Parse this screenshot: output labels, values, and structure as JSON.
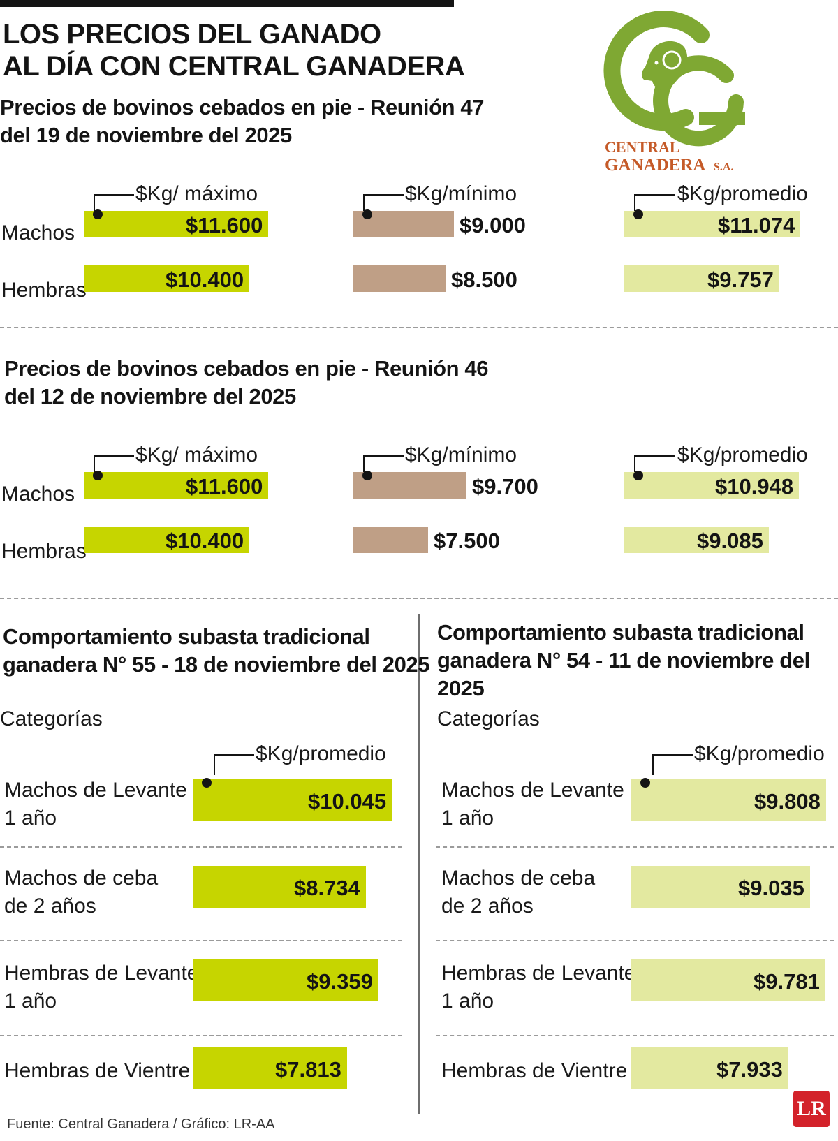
{
  "title": "LOS PRECIOS DEL GANADO AL DÍA CON CENTRAL GANADERA",
  "title_lines": [
    "LOS PRECIOS DEL GANADO",
    "AL DÍA CON CENTRAL GANADERA"
  ],
  "logo": {
    "line1": "CENTRAL",
    "line2": "GANADERA",
    "suffix": "S.A.",
    "icon": "ram-head-icon",
    "color": "#7fa833",
    "text_color": "#c55a28"
  },
  "colors": {
    "max": "#c6d500",
    "min": "#bf9f86",
    "avg": "#e3e9a0",
    "sub1": "#c6d500",
    "sub2": "#e3e9a0"
  },
  "chart_data": [
    {
      "type": "bar",
      "title": "Precios de bovinos cebados en pie - Reunión 47 del 19 de noviembre del 2025",
      "title_lines": [
        "Precios de bovinos cebados en pie - Reunión 47",
        "del 19 de noviembre del 2025"
      ],
      "categories": [
        "Machos",
        "Hembras"
      ],
      "series": [
        {
          "name": "$Kg/ máximo",
          "values": [
            11600,
            10400
          ],
          "labels": [
            "$11.600",
            "$10.400"
          ]
        },
        {
          "name": "$Kg/mínimo",
          "values": [
            9000,
            8500
          ],
          "labels": [
            "$9.000",
            "$8.500"
          ]
        },
        {
          "name": "$Kg/promedio",
          "values": [
            11074,
            9757
          ],
          "labels": [
            "$11.074",
            "$9.757"
          ]
        }
      ]
    },
    {
      "type": "bar",
      "title": "Precios de bovinos cebados en pie - Reunión 46 del 12 de noviembre del 2025",
      "title_lines": [
        "Precios de bovinos cebados en pie - Reunión 46",
        "del 12 de noviembre del 2025"
      ],
      "categories": [
        "Machos",
        "Hembras"
      ],
      "series": [
        {
          "name": "$Kg/ máximo",
          "values": [
            11600,
            10400
          ],
          "labels": [
            "$11.600",
            "$10.400"
          ]
        },
        {
          "name": "$Kg/mínimo",
          "values": [
            9700,
            7500
          ],
          "labels": [
            "$9.700",
            "$7.500"
          ]
        },
        {
          "name": "$Kg/promedio",
          "values": [
            10948,
            9085
          ],
          "labels": [
            "$10.948",
            "$9.085"
          ]
        }
      ]
    },
    {
      "type": "bar",
      "title": "Comportamiento subasta tradicional ganadera N° 55 - 18 de noviembre del 2025",
      "title_lines": [
        "Comportamiento subasta tradicional",
        "ganadera N° 55 - 18 de noviembre del 2025"
      ],
      "category_header": "Categorías",
      "categories": [
        "Machos de Levante 1 año",
        "Machos de ceba de 2 años",
        "Hembras de Levante 1 año",
        "Hembras de Vientre"
      ],
      "category_lines": [
        [
          "Machos de Levante",
          "1 año"
        ],
        [
          "Machos de ceba",
          "de 2 años"
        ],
        [
          "Hembras de Levante",
          "1 año"
        ],
        [
          "Hembras de Vientre"
        ]
      ],
      "series": [
        {
          "name": "$Kg/promedio",
          "values": [
            10045,
            8734,
            9359,
            7813
          ],
          "labels": [
            "$10.045",
            "$8.734",
            "$9.359",
            "$7.813"
          ]
        }
      ]
    },
    {
      "type": "bar",
      "title": "Comportamiento subasta tradicional ganadera N° 54 - 11 de noviembre del 2025",
      "title_lines": [
        "Comportamiento subasta tradicional",
        "ganadera N° 54 - 11 de noviembre del 2025"
      ],
      "category_header": "Categorías",
      "categories": [
        "Machos de Levante 1 año",
        "Machos de ceba de 2 años",
        "Hembras de Levante 1 año",
        "Hembras de Vientre"
      ],
      "category_lines": [
        [
          "Machos de Levante",
          "1 año"
        ],
        [
          "Machos de ceba",
          "de 2 años"
        ],
        [
          "Hembras de Levante",
          "1 año"
        ],
        [
          "Hembras de Vientre"
        ]
      ],
      "series": [
        {
          "name": "$Kg/promedio",
          "values": [
            9808,
            9035,
            9781,
            7933
          ],
          "labels": [
            "$9.808",
            "$9.035",
            "$9.781",
            "$7.933"
          ]
        }
      ]
    }
  ],
  "footer": "Fuente: Central Ganadera / Gráfico: LR-AA",
  "badge": "LR"
}
